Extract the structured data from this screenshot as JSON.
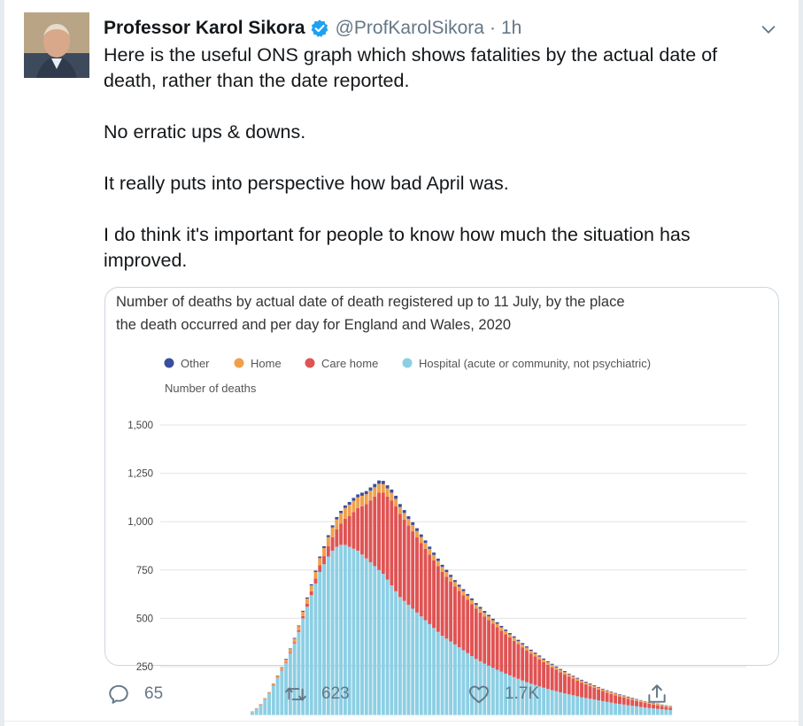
{
  "tweet": {
    "author_name": "Professor Karol Sikora",
    "handle": "@ProfKarolSikora",
    "separator": "·",
    "time": "1h",
    "paragraphs": [
      "Here is the useful ONS graph which shows fatalities by the actual date of death, rather than the date reported.",
      "No erratic ups & downs.",
      "It really puts into perspective how bad April was.",
      "I do think it's important for people to know how much the situation has improved."
    ],
    "replies": "65",
    "retweets": "623",
    "likes": "1.7K"
  },
  "colors": {
    "other": "#3a4f9c",
    "home": "#f0a04b",
    "care_home": "#e05353",
    "hospital": "#8ccfe4",
    "verified": "#1da1f2",
    "icon_gray": "#657786"
  },
  "chart_data": {
    "type": "bar",
    "stacked": true,
    "title": "Number of deaths by actual date of death registered up to 11 July, by the place the death occurred and per day for England and Wales, 2020",
    "title_lines": [
      "Number of deaths by actual date of death registered up to 11 July, by the place",
      "the death occurred and per day for England and Wales, 2020"
    ],
    "ylabel": "Number of deaths",
    "ylim": [
      0,
      1500
    ],
    "yticks": [
      250,
      500,
      750,
      1000,
      1250,
      1500
    ],
    "ytick_labels": [
      "250",
      "500",
      "750",
      "1,000",
      "1,250",
      "1,500"
    ],
    "legend_position": "top",
    "grid": true,
    "series": [
      {
        "name": "Other",
        "values": [
          1,
          1,
          1,
          1,
          1,
          2,
          2,
          2,
          3,
          3,
          4,
          4,
          5,
          6,
          6,
          7,
          8,
          9,
          10,
          11,
          12,
          12,
          13,
          14,
          15,
          15,
          16,
          16,
          17,
          17,
          17,
          17,
          16,
          16,
          16,
          15,
          15,
          14,
          14,
          14,
          13,
          13,
          12,
          12,
          12,
          11,
          11,
          11,
          10,
          10,
          10,
          9,
          9,
          9,
          9,
          9,
          8,
          8,
          8,
          8,
          7,
          7,
          7,
          7,
          7,
          6,
          6,
          6,
          6,
          6,
          5,
          5,
          5,
          5,
          5,
          4,
          4,
          4,
          4,
          4,
          4,
          4,
          3,
          3,
          3,
          3,
          3,
          3,
          3,
          3,
          3,
          2,
          2,
          2,
          2,
          2,
          2,
          2,
          2,
          2
        ]
      },
      {
        "name": "Home",
        "values": [
          2,
          3,
          4,
          5,
          6,
          8,
          10,
          12,
          14,
          16,
          18,
          20,
          22,
          26,
          30,
          34,
          38,
          42,
          46,
          50,
          52,
          54,
          56,
          58,
          58,
          56,
          54,
          52,
          50,
          48,
          46,
          44,
          42,
          40,
          38,
          36,
          35,
          34,
          33,
          32,
          31,
          30,
          29,
          28,
          27,
          26,
          25,
          24,
          23,
          22,
          22,
          21,
          21,
          20,
          20,
          19,
          19,
          18,
          18,
          17,
          17,
          16,
          16,
          15,
          15,
          15,
          14,
          14,
          14,
          13,
          13,
          13,
          12,
          12,
          12,
          11,
          11,
          11,
          11,
          10,
          10,
          10,
          10,
          9,
          9,
          9,
          9,
          8,
          8,
          8,
          8,
          8,
          7,
          7,
          7,
          7,
          7,
          6,
          6,
          6
        ]
      },
      {
        "name": "Care home",
        "values": [
          0,
          0,
          1,
          1,
          1,
          2,
          2,
          3,
          4,
          5,
          7,
          9,
          12,
          16,
          20,
          26,
          34,
          42,
          54,
          70,
          90,
          110,
          135,
          160,
          190,
          220,
          250,
          280,
          320,
          360,
          400,
          420,
          430,
          440,
          440,
          430,
          420,
          410,
          400,
          390,
          380,
          370,
          360,
          350,
          340,
          330,
          320,
          310,
          300,
          292,
          284,
          276,
          268,
          260,
          252,
          244,
          236,
          228,
          220,
          212,
          204,
          196,
          188,
          180,
          172,
          164,
          156,
          148,
          140,
          132,
          125,
          118,
          111,
          104,
          98,
          92,
          86,
          80,
          75,
          70,
          65,
          60,
          56,
          52,
          48,
          45,
          42,
          39,
          36,
          33,
          30,
          28,
          26,
          24,
          22,
          20,
          18,
          16,
          14,
          12
        ]
      },
      {
        "name": "Hospital (acute or community, not psychiatric)",
        "values": [
          15,
          30,
          50,
          80,
          110,
          150,
          190,
          230,
          270,
          320,
          370,
          430,
          500,
          560,
          620,
          680,
          740,
          780,
          820,
          850,
          870,
          880,
          880,
          870,
          860,
          850,
          830,
          810,
          790,
          770,
          750,
          730,
          700,
          670,
          640,
          610,
          590,
          570,
          550,
          530,
          510,
          490,
          470,
          450,
          430,
          410,
          395,
          380,
          365,
          350,
          335,
          320,
          305,
          290,
          278,
          266,
          255,
          244,
          234,
          224,
          214,
          205,
          196,
          187,
          178,
          170,
          162,
          155,
          148,
          141,
          135,
          129,
          123,
          117,
          112,
          107,
          102,
          97,
          92,
          88,
          84,
          80,
          76,
          72,
          68,
          64,
          60,
          57,
          54,
          51,
          48,
          45,
          42,
          39,
          36,
          34,
          32,
          30,
          28,
          26
        ]
      }
    ]
  }
}
